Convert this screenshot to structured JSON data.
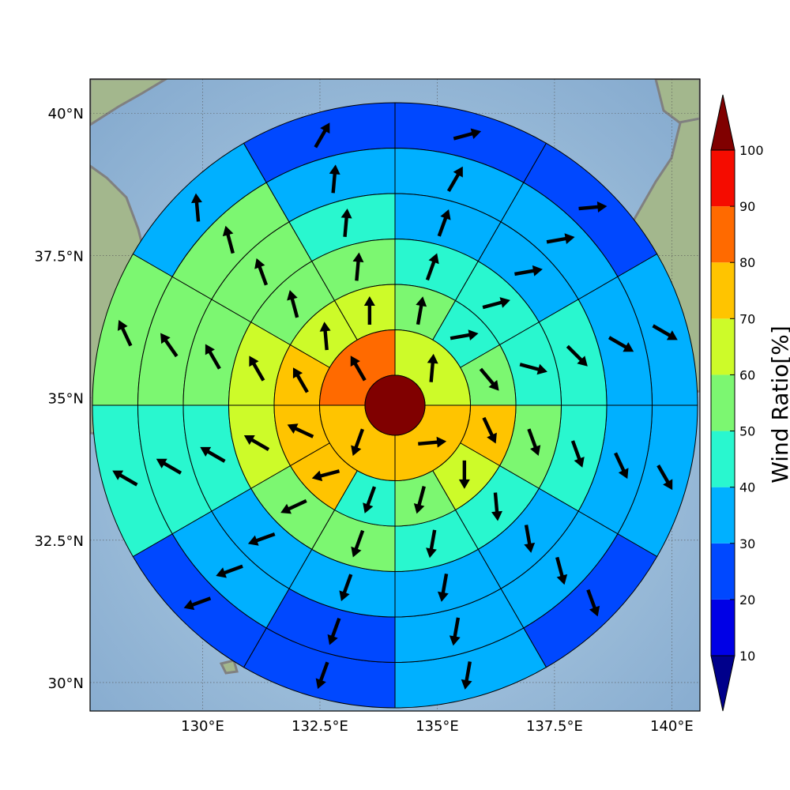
{
  "map": {
    "lon_ticks": [
      "130°E",
      "132.5°E",
      "135°E",
      "137.5°E",
      "140°E"
    ],
    "lat_ticks": [
      "40°N",
      "37.5°N",
      "35°N",
      "32.5°N",
      "30°N"
    ],
    "lon_values": [
      130,
      132.5,
      135,
      137.5,
      140
    ],
    "lat_values": [
      40,
      37.5,
      35,
      32.5,
      30
    ],
    "lon_range": [
      127.6,
      140.6
    ],
    "lat_range": [
      29.5,
      40.6
    ],
    "land_color": "#9fb88a",
    "sea_color": "#a9c6e0",
    "coast_color": "#808080"
  },
  "colorbar": {
    "label": "Wind Ratio[%]",
    "tick_labels": [
      "10",
      "20",
      "30",
      "40",
      "50",
      "60",
      "70",
      "80",
      "90",
      "100"
    ],
    "bins": [
      {
        "from": 10,
        "to": 20,
        "color": "#0000e6"
      },
      {
        "from": 20,
        "to": 30,
        "color": "#0048ff"
      },
      {
        "from": 30,
        "to": 40,
        "color": "#00b0ff"
      },
      {
        "from": 40,
        "to": 50,
        "color": "#29f7cf"
      },
      {
        "from": 50,
        "to": 60,
        "color": "#7cf771"
      },
      {
        "from": 60,
        "to": 70,
        "color": "#cdfb29"
      },
      {
        "from": 70,
        "to": 80,
        "color": "#ffc400"
      },
      {
        "from": 80,
        "to": 90,
        "color": "#ff6a00"
      },
      {
        "from": 90,
        "to": 100,
        "color": "#f50c00"
      }
    ],
    "under_color": "#00008b",
    "over_color": "#800000"
  },
  "chart_data": {
    "type": "polar-sector-map",
    "center_value": 100,
    "rings": [
      {
        "ring": 1,
        "sectors": [
          {
            "bearing": 0,
            "value": 62,
            "arrow_dir": 5
          },
          {
            "bearing": 90,
            "value": 72,
            "arrow_dir": 85
          },
          {
            "bearing": 180,
            "value": 72,
            "arrow_dir": 200
          },
          {
            "bearing": 270,
            "value": 85,
            "arrow_dir": 330
          }
        ]
      },
      {
        "ring": 2,
        "sectors": [
          {
            "bearing": 0,
            "value": 55,
            "arrow_dir": 10
          },
          {
            "bearing": 30,
            "value": 45,
            "arrow_dir": 80
          },
          {
            "bearing": 60,
            "value": 55,
            "arrow_dir": 140
          },
          {
            "bearing": 90,
            "value": 72,
            "arrow_dir": 155
          },
          {
            "bearing": 120,
            "value": 62,
            "arrow_dir": 180
          },
          {
            "bearing": 150,
            "value": 55,
            "arrow_dir": 195
          },
          {
            "bearing": 180,
            "value": 45,
            "arrow_dir": 200
          },
          {
            "bearing": 210,
            "value": 72,
            "arrow_dir": 255
          },
          {
            "bearing": 240,
            "value": 72,
            "arrow_dir": 295
          },
          {
            "bearing": 270,
            "value": 75,
            "arrow_dir": 330
          },
          {
            "bearing": 300,
            "value": 62,
            "arrow_dir": 355
          },
          {
            "bearing": 330,
            "value": 62,
            "arrow_dir": 0
          }
        ]
      },
      {
        "ring": 3,
        "sectors": [
          {
            "bearing": 0,
            "value": 45,
            "arrow_dir": 20
          },
          {
            "bearing": 30,
            "value": 45,
            "arrow_dir": 75
          },
          {
            "bearing": 60,
            "value": 45,
            "arrow_dir": 105
          },
          {
            "bearing": 90,
            "value": 55,
            "arrow_dir": 160
          },
          {
            "bearing": 120,
            "value": 45,
            "arrow_dir": 175
          },
          {
            "bearing": 150,
            "value": 45,
            "arrow_dir": 190
          },
          {
            "bearing": 180,
            "value": 55,
            "arrow_dir": 200
          },
          {
            "bearing": 210,
            "value": 55,
            "arrow_dir": 245
          },
          {
            "bearing": 240,
            "value": 62,
            "arrow_dir": 300
          },
          {
            "bearing": 270,
            "value": 62,
            "arrow_dir": 330
          },
          {
            "bearing": 300,
            "value": 55,
            "arrow_dir": 345
          },
          {
            "bearing": 330,
            "value": 55,
            "arrow_dir": 5
          }
        ]
      },
      {
        "ring": 4,
        "sectors": [
          {
            "bearing": 0,
            "value": 38,
            "arrow_dir": 20
          },
          {
            "bearing": 30,
            "value": 38,
            "arrow_dir": 80
          },
          {
            "bearing": 60,
            "value": 45,
            "arrow_dir": 135
          },
          {
            "bearing": 90,
            "value": 45,
            "arrow_dir": 160
          },
          {
            "bearing": 120,
            "value": 38,
            "arrow_dir": 170
          },
          {
            "bearing": 150,
            "value": 38,
            "arrow_dir": 190
          },
          {
            "bearing": 180,
            "value": 38,
            "arrow_dir": 200
          },
          {
            "bearing": 210,
            "value": 38,
            "arrow_dir": 250
          },
          {
            "bearing": 240,
            "value": 45,
            "arrow_dir": 300
          },
          {
            "bearing": 270,
            "value": 55,
            "arrow_dir": 330
          },
          {
            "bearing": 300,
            "value": 55,
            "arrow_dir": 340
          },
          {
            "bearing": 330,
            "value": 45,
            "arrow_dir": 5
          }
        ]
      },
      {
        "ring": 5,
        "sectors": [
          {
            "bearing": 0,
            "value": 38,
            "arrow_dir": 30
          },
          {
            "bearing": 30,
            "value": 38,
            "arrow_dir": 80
          },
          {
            "bearing": 60,
            "value": 38,
            "arrow_dir": 120
          },
          {
            "bearing": 90,
            "value": 38,
            "arrow_dir": 155
          },
          {
            "bearing": 120,
            "value": 38,
            "arrow_dir": 165
          },
          {
            "bearing": 150,
            "value": 38,
            "arrow_dir": 190
          },
          {
            "bearing": 180,
            "value": 25,
            "arrow_dir": 200
          },
          {
            "bearing": 210,
            "value": 38,
            "arrow_dir": 250
          },
          {
            "bearing": 240,
            "value": 45,
            "arrow_dir": 300
          },
          {
            "bearing": 270,
            "value": 55,
            "arrow_dir": 325
          },
          {
            "bearing": 300,
            "value": 55,
            "arrow_dir": 345
          },
          {
            "bearing": 330,
            "value": 38,
            "arrow_dir": 5
          }
        ]
      },
      {
        "ring": 6,
        "sectors": [
          {
            "bearing": 0,
            "value": 25,
            "arrow_dir": 75
          },
          {
            "bearing": 30,
            "value": 25,
            "arrow_dir": 85
          },
          {
            "bearing": 60,
            "value": 38,
            "arrow_dir": 120
          },
          {
            "bearing": 90,
            "value": 38,
            "arrow_dir": 150
          },
          {
            "bearing": 120,
            "value": 25,
            "arrow_dir": 160
          },
          {
            "bearing": 150,
            "value": 38,
            "arrow_dir": 190
          },
          {
            "bearing": 180,
            "value": 25,
            "arrow_dir": 200
          },
          {
            "bearing": 210,
            "value": 25,
            "arrow_dir": 250
          },
          {
            "bearing": 240,
            "value": 45,
            "arrow_dir": 300
          },
          {
            "bearing": 270,
            "value": 55,
            "arrow_dir": 335
          },
          {
            "bearing": 300,
            "value": 38,
            "arrow_dir": 355
          },
          {
            "bearing": 330,
            "value": 25,
            "arrow_dir": 30
          }
        ]
      }
    ]
  }
}
